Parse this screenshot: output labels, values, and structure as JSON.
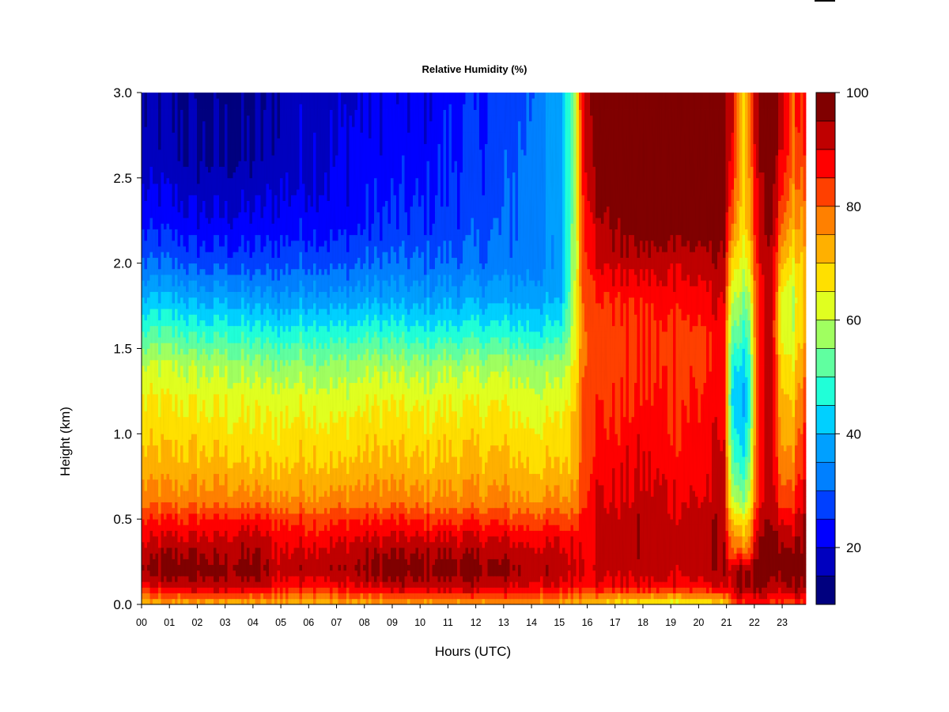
{
  "chart_data": {
    "type": "heatmap",
    "title": "Relative Humidity (%)",
    "xlabel": "Hours (UTC)",
    "ylabel": "Height (km)",
    "x_ticks": [
      "00",
      "01",
      "02",
      "03",
      "04",
      "05",
      "06",
      "07",
      "08",
      "09",
      "10",
      "11",
      "12",
      "13",
      "14",
      "15",
      "16",
      "17",
      "18",
      "19",
      "20",
      "21",
      "22",
      "23"
    ],
    "xlim": [
      0,
      23.85
    ],
    "y_ticks": [
      "0.0",
      "0.5",
      "1.0",
      "1.5",
      "2.0",
      "2.5",
      "3.0"
    ],
    "ylim": [
      0,
      3.0
    ],
    "colorbar": {
      "ticks": [
        "20",
        "40",
        "60",
        "80",
        "100"
      ],
      "range": [
        10,
        100
      ],
      "levels": [
        10,
        15,
        20,
        25,
        30,
        35,
        40,
        45,
        50,
        55,
        60,
        65,
        70,
        75,
        80,
        85,
        90,
        95,
        100
      ],
      "colors": [
        "#00007f",
        "#0000bf",
        "#0000ff",
        "#0040ff",
        "#0080ff",
        "#00a0ff",
        "#00d0ff",
        "#20ffd8",
        "#60ffa0",
        "#a0ff60",
        "#e0ff20",
        "#ffe000",
        "#ffb000",
        "#ff8000",
        "#ff4000",
        "#ff0000",
        "#bf0000",
        "#800000"
      ]
    },
    "time_hours": [
      0,
      1,
      2,
      3,
      4,
      5,
      6,
      7,
      8,
      9,
      10,
      11,
      12,
      13,
      14,
      15,
      15.5,
      15.9,
      16.3,
      17,
      18,
      19,
      20,
      20.9,
      21.2,
      21.5,
      21.8,
      22.1,
      22.6,
      23,
      23.4,
      23.8
    ],
    "height_km": [
      0,
      0.1,
      0.2,
      0.3,
      0.4,
      0.5,
      0.6,
      0.8,
      1.0,
      1.2,
      1.4,
      1.6,
      1.8,
      2.0,
      2.2,
      2.4,
      2.6,
      2.8,
      3.0
    ],
    "rh_grid": [
      [
        70,
        72,
        72,
        72,
        71,
        72,
        72,
        72,
        72,
        73,
        73,
        74,
        74,
        75,
        74,
        73,
        72,
        72,
        70,
        66,
        65,
        62,
        65,
        66,
        80,
        82,
        85,
        85,
        82,
        82,
        82,
        82
      ],
      [
        86,
        90,
        92,
        92,
        91,
        88,
        87,
        87,
        90,
        92,
        91,
        92,
        92,
        91,
        90,
        88,
        88,
        88,
        88,
        88,
        88,
        88,
        88,
        90,
        92,
        96,
        96,
        96,
        92,
        92,
        96,
        96
      ],
      [
        95,
        98,
        98,
        96,
        98,
        92,
        94,
        94,
        96,
        98,
        97,
        98,
        97,
        96,
        94,
        93,
        92,
        92,
        92,
        92,
        92,
        92,
        92,
        94,
        92,
        96,
        96,
        98,
        96,
        96,
        98,
        98
      ],
      [
        92,
        95,
        95,
        93,
        95,
        90,
        92,
        92,
        94,
        95,
        94,
        95,
        94,
        93,
        92,
        91,
        90,
        90,
        92,
        92,
        93,
        93,
        93,
        94,
        82,
        80,
        82,
        95,
        96,
        96,
        97,
        98
      ],
      [
        88,
        90,
        90,
        90,
        92,
        88,
        88,
        88,
        90,
        90,
        90,
        90,
        90,
        89,
        88,
        88,
        88,
        90,
        92,
        92,
        93,
        93,
        93,
        94,
        78,
        72,
        75,
        92,
        96,
        92,
        92,
        96
      ],
      [
        85,
        85,
        85,
        86,
        86,
        84,
        84,
        84,
        85,
        85,
        84,
        84,
        84,
        83,
        82,
        82,
        82,
        88,
        92,
        92,
        93,
        92,
        92,
        94,
        70,
        65,
        70,
        88,
        95,
        88,
        88,
        95
      ],
      [
        78,
        78,
        78,
        78,
        78,
        76,
        77,
        77,
        78,
        78,
        77,
        77,
        77,
        77,
        76,
        76,
        76,
        86,
        90,
        90,
        92,
        90,
        90,
        92,
        62,
        55,
        62,
        85,
        94,
        82,
        84,
        92
      ],
      [
        72,
        72,
        72,
        72,
        70,
        70,
        72,
        70,
        72,
        72,
        71,
        72,
        72,
        72,
        70,
        70,
        72,
        84,
        88,
        88,
        90,
        88,
        88,
        92,
        55,
        46,
        55,
        82,
        92,
        76,
        78,
        88
      ],
      [
        68,
        68,
        68,
        67,
        66,
        66,
        68,
        66,
        68,
        68,
        67,
        68,
        68,
        68,
        66,
        66,
        70,
        84,
        86,
        86,
        88,
        86,
        86,
        90,
        50,
        40,
        50,
        82,
        92,
        72,
        74,
        85
      ],
      [
        65,
        65,
        64,
        64,
        63,
        63,
        64,
        62,
        64,
        64,
        63,
        64,
        64,
        64,
        62,
        62,
        68,
        84,
        84,
        84,
        86,
        85,
        85,
        88,
        45,
        38,
        45,
        82,
        92,
        70,
        70,
        82
      ],
      [
        60,
        60,
        59,
        58,
        57,
        56,
        57,
        56,
        58,
        58,
        57,
        58,
        58,
        58,
        57,
        56,
        64,
        82,
        82,
        82,
        84,
        84,
        84,
        88,
        48,
        42,
        48,
        82,
        92,
        66,
        66,
        78
      ],
      [
        50,
        50,
        48,
        48,
        47,
        46,
        48,
        46,
        48,
        48,
        46,
        47,
        47,
        47,
        46,
        46,
        60,
        82,
        82,
        82,
        84,
        84,
        84,
        88,
        55,
        50,
        52,
        82,
        92,
        62,
        62,
        72
      ],
      [
        40,
        40,
        38,
        38,
        37,
        36,
        38,
        36,
        38,
        38,
        37,
        38,
        38,
        38,
        38,
        38,
        58,
        84,
        84,
        86,
        86,
        88,
        88,
        90,
        62,
        56,
        58,
        84,
        93,
        62,
        60,
        70
      ],
      [
        30,
        30,
        28,
        28,
        27,
        28,
        30,
        28,
        30,
        31,
        30,
        31,
        31,
        32,
        33,
        35,
        56,
        86,
        90,
        92,
        92,
        92,
        92,
        94,
        70,
        62,
        66,
        86,
        94,
        70,
        66,
        72
      ],
      [
        24,
        24,
        22,
        22,
        22,
        23,
        24,
        23,
        25,
        26,
        26,
        27,
        28,
        30,
        32,
        36,
        55,
        88,
        92,
        96,
        98,
        98,
        98,
        96,
        80,
        66,
        72,
        88,
        96,
        78,
        72,
        76
      ],
      [
        20,
        20,
        18,
        18,
        18,
        20,
        21,
        21,
        23,
        24,
        24,
        26,
        27,
        29,
        32,
        37,
        54,
        90,
        96,
        98,
        99,
        99,
        99,
        97,
        86,
        68,
        74,
        90,
        97,
        84,
        76,
        80
      ],
      [
        17,
        17,
        15,
        15,
        15,
        18,
        20,
        20,
        22,
        23,
        22,
        25,
        26,
        28,
        32,
        38,
        54,
        92,
        98,
        99,
        99,
        99,
        99,
        98,
        90,
        70,
        76,
        92,
        98,
        88,
        80,
        84
      ],
      [
        16,
        16,
        14,
        14,
        14,
        17,
        19,
        19,
        21,
        22,
        21,
        24,
        25,
        27,
        31,
        38,
        54,
        94,
        98,
        99,
        99,
        99,
        99,
        98,
        92,
        70,
        76,
        94,
        98,
        90,
        82,
        86
      ],
      [
        15,
        15,
        13,
        13,
        13,
        16,
        18,
        18,
        20,
        21,
        20,
        23,
        24,
        26,
        30,
        38,
        54,
        95,
        99,
        99,
        99,
        99,
        99,
        98,
        92,
        70,
        76,
        94,
        98,
        90,
        82,
        86
      ]
    ]
  }
}
